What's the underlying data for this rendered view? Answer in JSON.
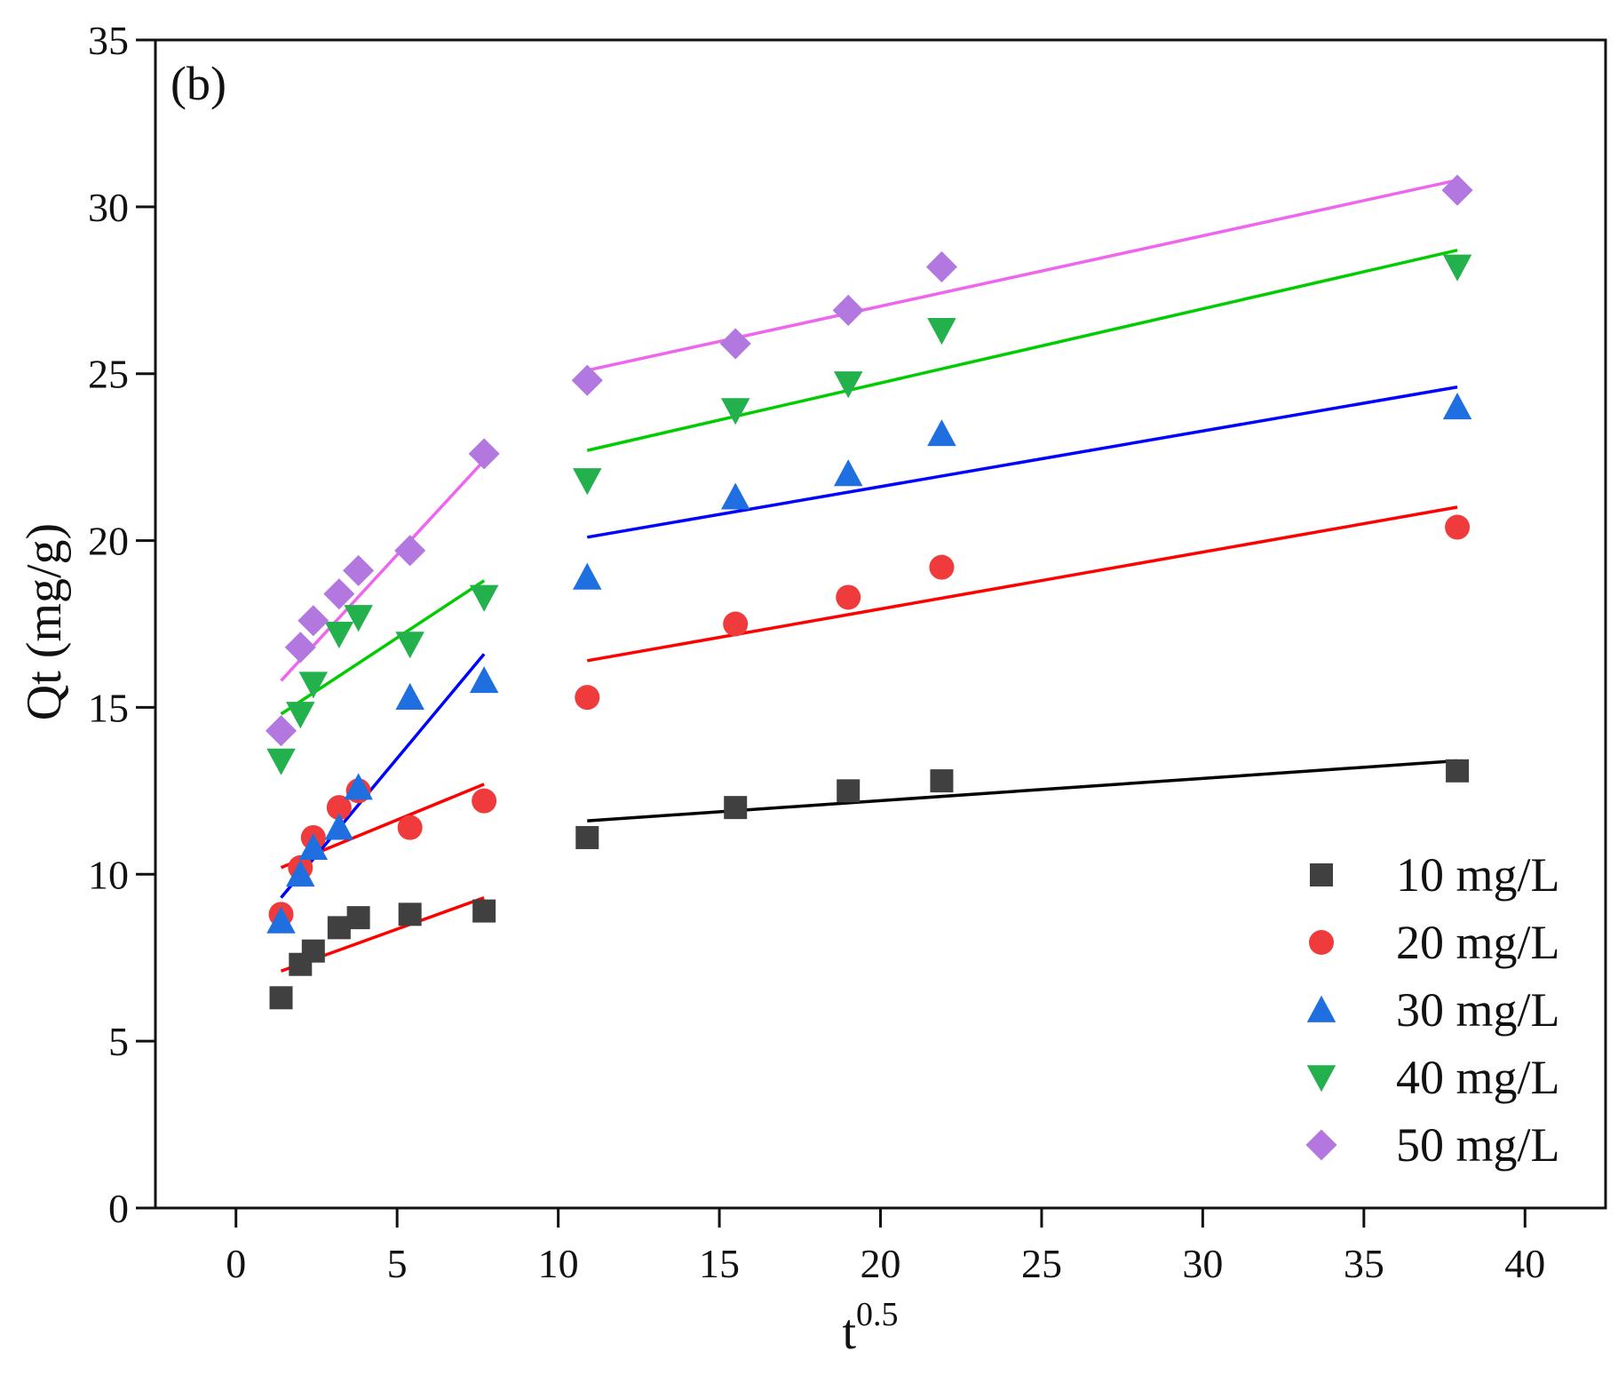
{
  "chart_data": {
    "type": "scatter",
    "panel_label": "(b)",
    "xlabel": "t",
    "xlabel_sup": "0.5",
    "ylabel": "Qt (mg/g)",
    "xlim": [
      -2.5,
      42.5
    ],
    "ylim": [
      0,
      35
    ],
    "xticks": [
      "0",
      "5",
      "10",
      "15",
      "20",
      "25",
      "30",
      "35",
      "40"
    ],
    "yticks": [
      "0",
      "5",
      "10",
      "15",
      "20",
      "25",
      "30",
      "35"
    ],
    "grid": false,
    "legend_position": "bottom-right",
    "series": [
      {
        "name": "10 mg/L",
        "marker": "square",
        "color": "#404040",
        "x": [
          1.4,
          2.0,
          2.4,
          3.2,
          3.8,
          5.4,
          7.7,
          10.9,
          15.5,
          19.0,
          21.9,
          37.9
        ],
        "y": [
          6.3,
          7.3,
          7.7,
          8.4,
          8.7,
          8.8,
          8.9,
          11.1,
          12.0,
          12.5,
          12.8,
          13.1
        ],
        "fits": [
          {
            "x": [
              1.4,
              7.7
            ],
            "y": [
              7.1,
              9.3
            ],
            "color": "#ff0000"
          },
          {
            "x": [
              10.9,
              37.9
            ],
            "y": [
              11.6,
              13.4
            ],
            "color": "#000000"
          }
        ]
      },
      {
        "name": "20 mg/L",
        "marker": "circle",
        "color": "#ef3b3b",
        "x": [
          1.4,
          2.0,
          2.4,
          3.2,
          3.8,
          5.4,
          7.7,
          10.9,
          15.5,
          19.0,
          21.9,
          37.9
        ],
        "y": [
          8.8,
          10.2,
          11.1,
          12.0,
          12.5,
          11.4,
          12.2,
          15.3,
          17.5,
          18.3,
          19.2,
          20.4
        ],
        "fits": [
          {
            "x": [
              1.4,
              7.7
            ],
            "y": [
              10.2,
              12.7
            ],
            "color": "#ff0000"
          },
          {
            "x": [
              10.9,
              37.9
            ],
            "y": [
              16.4,
              21.0
            ],
            "color": "#ff0000"
          }
        ]
      },
      {
        "name": "30 mg/L",
        "marker": "triangle-up",
        "color": "#1f6fe0",
        "x": [
          1.4,
          2.0,
          2.4,
          3.2,
          3.8,
          5.4,
          7.7,
          10.9,
          15.5,
          19.0,
          21.9,
          37.9
        ],
        "y": [
          8.6,
          10.0,
          10.8,
          11.4,
          12.6,
          15.3,
          15.8,
          18.9,
          21.3,
          22.0,
          23.2,
          24.0
        ],
        "fits": [
          {
            "x": [
              1.4,
              7.7
            ],
            "y": [
              9.3,
              16.6
            ],
            "color": "#0000ff"
          },
          {
            "x": [
              10.9,
              37.9
            ],
            "y": [
              20.1,
              24.6
            ],
            "color": "#0000ff"
          }
        ]
      },
      {
        "name": "40 mg/L",
        "marker": "triangle-down",
        "color": "#22b14c",
        "x": [
          1.4,
          2.0,
          2.4,
          3.2,
          3.8,
          5.4,
          7.7,
          10.9,
          15.5,
          19.0,
          21.9,
          37.9
        ],
        "y": [
          13.4,
          14.8,
          15.7,
          17.2,
          17.7,
          16.9,
          18.3,
          21.8,
          23.9,
          24.7,
          26.3,
          28.2
        ],
        "fits": [
          {
            "x": [
              1.4,
              7.7
            ],
            "y": [
              14.8,
              18.8
            ],
            "color": "#00cc00"
          },
          {
            "x": [
              10.9,
              37.9
            ],
            "y": [
              22.7,
              28.7
            ],
            "color": "#00cc00"
          }
        ]
      },
      {
        "name": "50 mg/L",
        "marker": "diamond",
        "color": "#b278e0",
        "x": [
          1.4,
          2.0,
          2.4,
          3.2,
          3.8,
          5.4,
          7.7,
          10.9,
          15.5,
          19.0,
          21.9,
          37.9
        ],
        "y": [
          14.3,
          16.8,
          17.6,
          18.4,
          19.1,
          19.7,
          22.6,
          24.8,
          25.9,
          26.9,
          28.2,
          30.5
        ],
        "fits": [
          {
            "x": [
              1.4,
              7.7
            ],
            "y": [
              15.8,
              22.4
            ],
            "color": "#ee66ee"
          },
          {
            "x": [
              10.9,
              37.9
            ],
            "y": [
              25.1,
              30.8
            ],
            "color": "#ee66ee"
          }
        ]
      }
    ]
  }
}
